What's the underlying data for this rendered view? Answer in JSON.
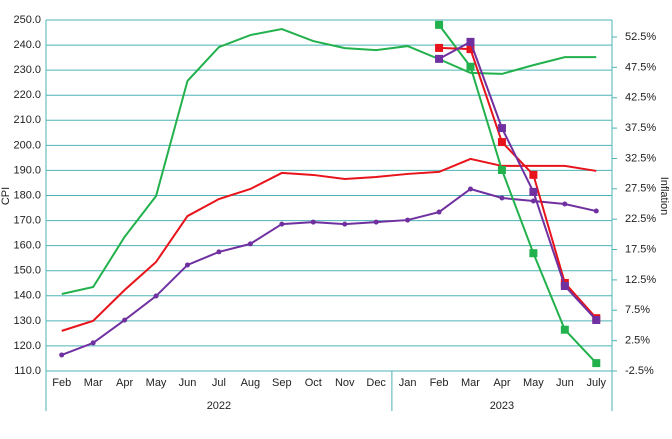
{
  "chart_data": {
    "type": "line",
    "ylabel": "CPI",
    "y2label": "Inflation",
    "category_groups": [
      {
        "label": "2022",
        "categories": [
          "Feb",
          "Mar",
          "Apr",
          "May",
          "Jun",
          "Jul",
          "Aug",
          "Sep",
          "Oct",
          "Nov",
          "Dec"
        ]
      },
      {
        "label": "2023",
        "categories": [
          "Jan",
          "Feb",
          "Mar",
          "Apr",
          "May",
          "Jun",
          "July"
        ]
      }
    ],
    "ylim": [
      110,
      250
    ],
    "yticks": [
      {
        "value": 110,
        "label": "110.0"
      },
      {
        "value": 120,
        "label": "120.0"
      },
      {
        "value": 130,
        "label": "130.0"
      },
      {
        "value": 140,
        "label": "140.0"
      },
      {
        "value": 150,
        "label": "150.0"
      },
      {
        "value": 160,
        "label": "160.0"
      },
      {
        "value": 170,
        "label": "170.0"
      },
      {
        "value": 180,
        "label": "180.0"
      },
      {
        "value": 190,
        "label": "190.0"
      },
      {
        "value": 200,
        "label": "200.0"
      },
      {
        "value": 210,
        "label": "210.0"
      },
      {
        "value": 220,
        "label": "220.0"
      },
      {
        "value": 230,
        "label": "230.0"
      },
      {
        "value": 240,
        "label": "240.0"
      },
      {
        "value": 250,
        "label": "250.0"
      }
    ],
    "y2lim": [
      -2.5,
      55.3
    ],
    "y2ticks": [
      {
        "value": -2.5,
        "label": "-2.5%"
      },
      {
        "value": 2.5,
        "label": "2.5%"
      },
      {
        "value": 7.5,
        "label": "7.5%"
      },
      {
        "value": 12.5,
        "label": "12.5%"
      },
      {
        "value": 17.5,
        "label": "17.5%"
      },
      {
        "value": 22.5,
        "label": "22.5%"
      },
      {
        "value": 27.5,
        "label": "27.5%"
      },
      {
        "value": 32.5,
        "label": "32.5%"
      },
      {
        "value": 37.5,
        "label": "37.5%"
      },
      {
        "value": 42.5,
        "label": "42.5%"
      },
      {
        "value": 47.5,
        "label": "47.5%"
      },
      {
        "value": 52.5,
        "label": "52.5%"
      }
    ],
    "grid": true,
    "series": [
      {
        "color": "#22b14c",
        "marker": "none",
        "values": [
          140.7,
          143.5,
          163.5,
          179.8,
          225.7,
          239.2,
          244,
          246.4,
          241.6,
          238.8,
          238,
          239.6,
          234.4,
          228.9,
          228.5,
          232,
          235.2,
          235.2
        ]
      },
      {
        "color": "#e8141b",
        "marker": "none",
        "values": [
          126,
          130,
          142.3,
          153.5,
          171.8,
          178.6,
          182.6,
          189,
          188.2,
          186.6,
          187.4,
          188.6,
          189.4,
          194.6,
          191.8,
          191.8,
          191.8,
          189.8
        ]
      },
      {
        "color": "#7030a0",
        "marker": "circle",
        "values": [
          116.4,
          121.2,
          130.3,
          139.9,
          152.3,
          157.5,
          160.7,
          168.6,
          169.4,
          168.6,
          169.4,
          170.2,
          173.4,
          182.6,
          179,
          177.8,
          176.6,
          173.8
        ]
      },
      {
        "color": "#22b14c",
        "marker": "square",
        "axis": "y2",
        "values": [
          null,
          null,
          null,
          null,
          null,
          null,
          null,
          null,
          null,
          null,
          null,
          null,
          54.5,
          47.6,
          30.6,
          16.9,
          4.3,
          -1.2
        ]
      },
      {
        "color": "#e8141b",
        "marker": "square",
        "axis": "y2",
        "values": [
          null,
          null,
          null,
          null,
          null,
          null,
          null,
          null,
          null,
          null,
          null,
          null,
          50.7,
          50.5,
          35.2,
          29.8,
          12,
          6.2
        ]
      },
      {
        "color": "#7030a0",
        "marker": "square",
        "axis": "y2",
        "values": [
          null,
          null,
          null,
          null,
          null,
          null,
          null,
          null,
          null,
          null,
          null,
          null,
          48.9,
          51.7,
          37.5,
          27,
          11.5,
          5.9
        ]
      }
    ]
  }
}
